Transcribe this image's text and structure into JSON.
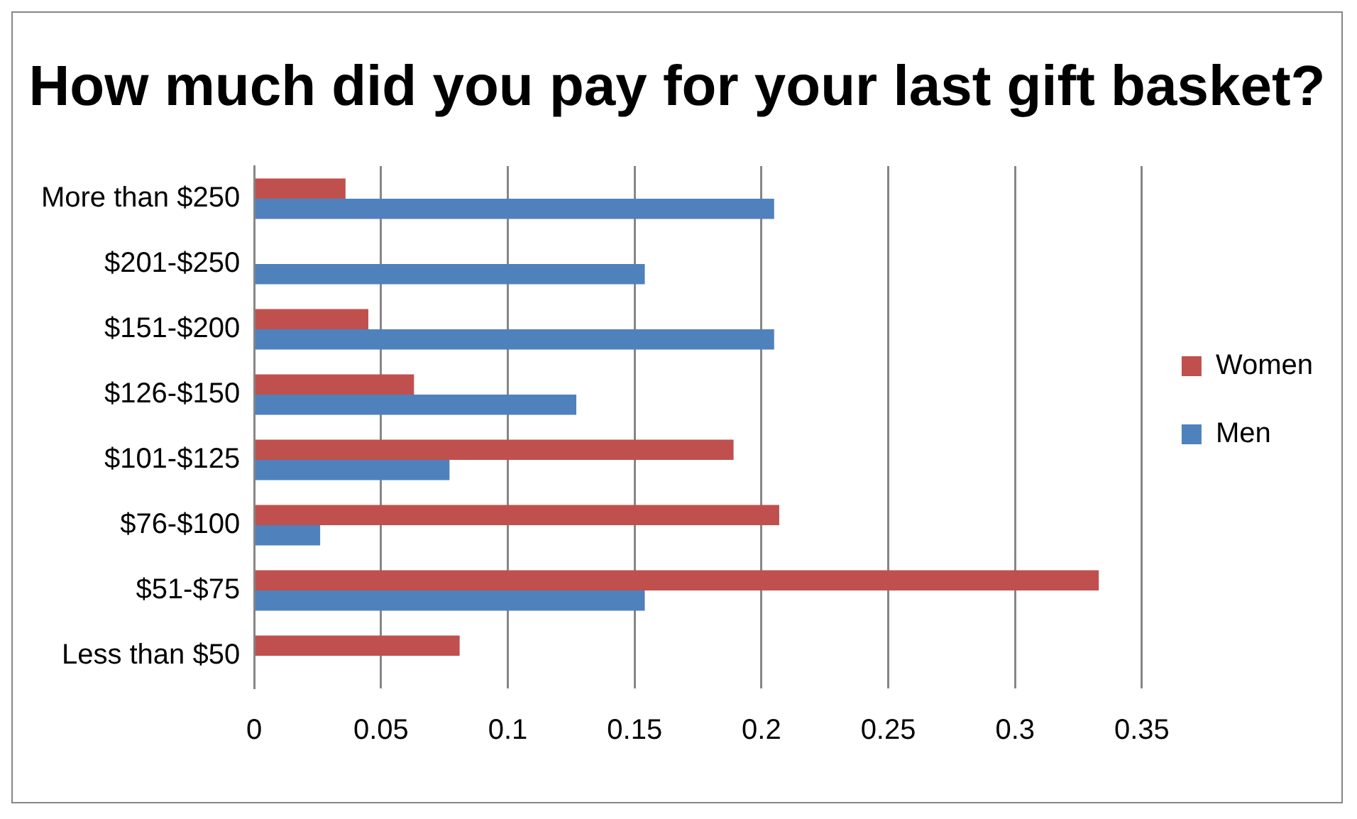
{
  "chart_data": {
    "type": "bar",
    "orientation": "horizontal",
    "title": "How much did you pay for your last gift basket?",
    "categories": [
      "More than $250",
      "$201-$250",
      "$151-$200",
      "$126-$150",
      "$101-$125",
      "$76-$100",
      "$51-$75",
      "Less than $50"
    ],
    "series": [
      {
        "name": "Women",
        "color": "#c0504d",
        "values": [
          0.036,
          0,
          0.045,
          0.063,
          0.189,
          0.207,
          0.333,
          0.081
        ]
      },
      {
        "name": "Men",
        "color": "#4f81bd",
        "values": [
          0.205,
          0.154,
          0.205,
          0.127,
          0.077,
          0.026,
          0.154,
          0
        ]
      }
    ],
    "xlim": [
      0,
      0.35
    ],
    "xticks": [
      0,
      0.05,
      0.1,
      0.15,
      0.2,
      0.25,
      0.3,
      0.35
    ],
    "grid": "x",
    "legend": "right"
  }
}
